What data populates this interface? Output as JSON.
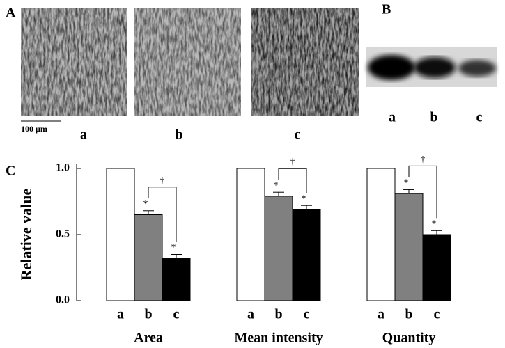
{
  "panels": {
    "A": {
      "label": "A",
      "images": [
        "a",
        "b",
        "c"
      ],
      "scale_bar": "100 µm"
    },
    "B": {
      "label": "B",
      "lanes": [
        "a",
        "b",
        "c"
      ]
    },
    "C": {
      "label": "C"
    }
  },
  "chart_data": {
    "type": "bar",
    "ylabel": "Relative value",
    "categories": [
      "Area",
      "Mean intensity",
      "Quantity"
    ],
    "series": [
      {
        "name": "a",
        "color": "#ffffff",
        "values": [
          1,
          1,
          1
        ]
      },
      {
        "name": "b",
        "color": "#808080",
        "values": [
          0.65,
          0.79,
          0.81
        ],
        "errors": [
          0.03,
          0.03,
          0.03
        ]
      },
      {
        "name": "c",
        "color": "#000000",
        "values": [
          0.32,
          0.69,
          0.5
        ],
        "errors": [
          0.03,
          0.03,
          0.03
        ]
      }
    ],
    "ylim": [
      0,
      1
    ],
    "yticks": [
      {
        "value": 0,
        "label": "0.0"
      },
      0.5,
      {
        "value": 1,
        "label": "1.0"
      }
    ],
    "annotations": {
      "significant": "*",
      "versus_b": "†"
    }
  }
}
